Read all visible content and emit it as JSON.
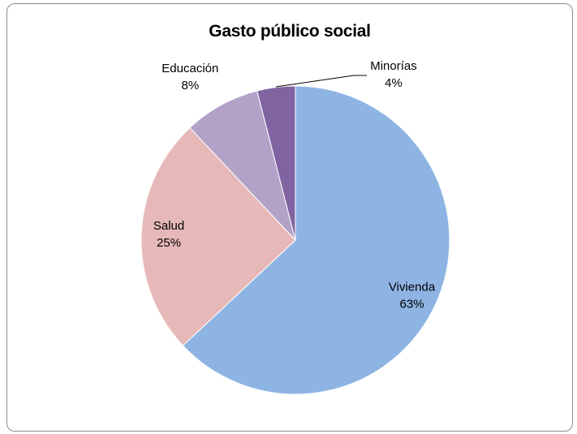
{
  "chart_data": {
    "type": "pie",
    "title": "Gasto público social",
    "start_angle_deg": 0,
    "direction": "clockwise",
    "slices": [
      {
        "label": "Vivienda",
        "value": 63,
        "percent_label": "63%",
        "color": "#8eb4e3",
        "label_position": "inside"
      },
      {
        "label": "Salud",
        "value": 25,
        "percent_label": "25%",
        "color": "#e6b9b8",
        "label_position": "inside"
      },
      {
        "label": "Educación",
        "value": 8,
        "percent_label": "8%",
        "color": "#b3a2c7",
        "label_position": "outside"
      },
      {
        "label": "Minorías",
        "value": 4,
        "percent_label": "4%",
        "color": "#8064a2",
        "label_position": "outside-leader"
      }
    ],
    "legend": "none",
    "slice_border_color": "#ffffff"
  }
}
